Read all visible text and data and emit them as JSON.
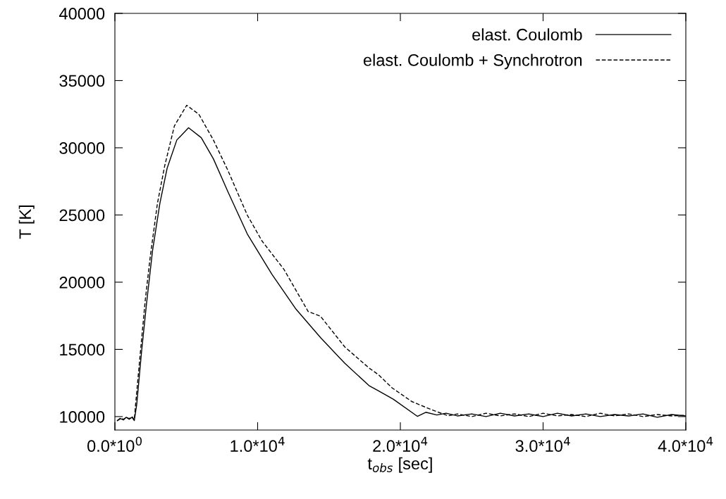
{
  "chart_data": {
    "type": "line",
    "xlabel": "t$_{obs}$ [sec]",
    "ylabel": "T [K]",
    "xlim": [
      0,
      40000
    ],
    "ylim": [
      9000,
      40000
    ],
    "xticks": [
      {
        "value": 0,
        "label": "0.0*10$^{0}$"
      },
      {
        "value": 10000,
        "label": "1.0*10$^{4}$"
      },
      {
        "value": 20000,
        "label": "2.0*10$^{4}$"
      },
      {
        "value": 30000,
        "label": "3.0*10$^{4}$"
      },
      {
        "value": 40000,
        "label": "4.0*10$^{4}$"
      }
    ],
    "yticks": [
      10000,
      15000,
      20000,
      25000,
      30000,
      35000,
      40000
    ],
    "grid": false,
    "legend": "top right",
    "marker": "none",
    "series": [
      {
        "name": "elast. Coulomb",
        "color": "#000000",
        "line_style": "solid",
        "x": [
          170,
          400,
          600,
          800,
          1000,
          1200,
          1360,
          1530,
          1870,
          2210,
          2640,
          3150,
          3660,
          4340,
          5160,
          6050,
          6900,
          7920,
          9280,
          10990,
          12690,
          14400,
          16100,
          17800,
          18450,
          19500,
          21190,
          21780,
          22560,
          23200,
          24000,
          25000,
          26000,
          27000,
          28000,
          29000,
          30000,
          31000,
          32000,
          33000,
          34000,
          35000,
          36000,
          37000,
          38000,
          39000,
          40000
        ],
        "values": [
          9690,
          9850,
          9750,
          9950,
          9800,
          9950,
          9700,
          10900,
          14840,
          18340,
          22360,
          25860,
          28480,
          30580,
          31490,
          30750,
          29180,
          26730,
          23580,
          20610,
          17990,
          15890,
          13970,
          12310,
          11930,
          11300,
          10020,
          10320,
          10120,
          10250,
          10050,
          10200,
          10000,
          10250,
          10050,
          10200,
          10000,
          10250,
          10050,
          10200,
          10000,
          10150,
          10050,
          10200,
          9950,
          10150,
          10050
        ]
      },
      {
        "name": "elast. Coulomb + Synchrotron",
        "color": "#000000",
        "line_style": "dashed",
        "x": [
          170,
          400,
          600,
          800,
          1000,
          1200,
          1360,
          1450,
          1790,
          2130,
          2470,
          2980,
          3490,
          4170,
          5030,
          5880,
          6900,
          7920,
          9280,
          10310,
          11840,
          13540,
          14400,
          16100,
          17800,
          18450,
          19430,
          20800,
          22170,
          23350,
          24000,
          25000,
          26000,
          27000,
          28000,
          29000,
          30000,
          31000,
          32000,
          33000,
          34000,
          35000,
          36000,
          37000,
          38000,
          39000,
          40000
        ],
        "values": [
          9700,
          9900,
          9800,
          9950,
          9850,
          10000,
          9750,
          10900,
          14840,
          18690,
          21840,
          25860,
          28660,
          31630,
          33160,
          32500,
          30580,
          28310,
          24980,
          23060,
          20960,
          17820,
          17470,
          15190,
          13620,
          13130,
          12130,
          11120,
          10520,
          10060,
          10200,
          10000,
          10250,
          10050,
          10200,
          10000,
          10250,
          10050,
          10150,
          10000,
          10250,
          10050,
          10200,
          10000,
          10150,
          10050,
          10100
        ]
      }
    ]
  }
}
